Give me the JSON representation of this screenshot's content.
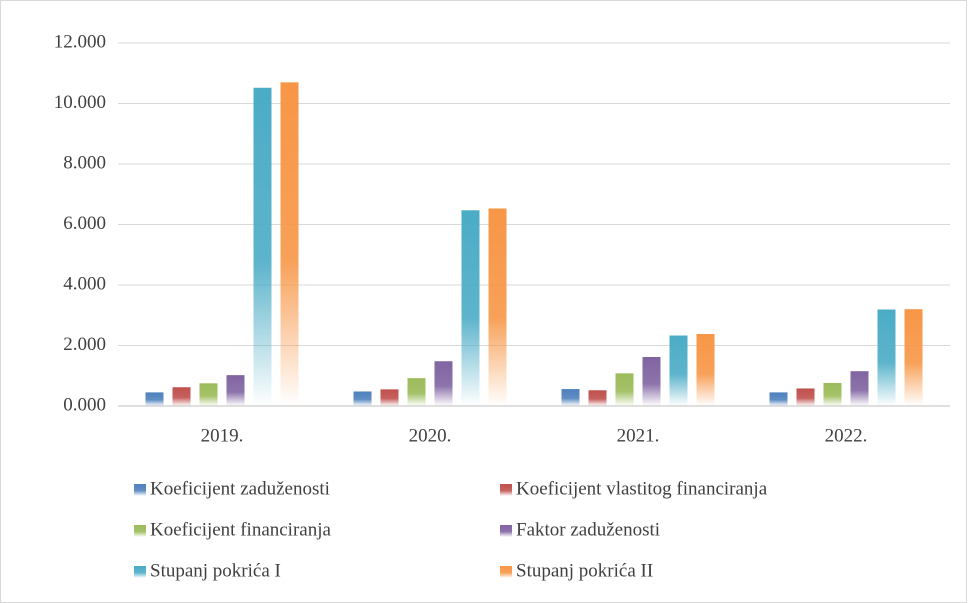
{
  "chart_data": {
    "type": "bar",
    "categories": [
      "2019.",
      "2020.",
      "2021.",
      "2022."
    ],
    "series": [
      {
        "name": "Koeficijent zaduženosti",
        "color": "#4f81bd",
        "values": [
          0.45,
          0.48,
          0.56,
          0.45
        ]
      },
      {
        "name": "Koeficijent vlastitog financiranja",
        "color": "#c0504d",
        "values": [
          0.62,
          0.55,
          0.52,
          0.58
        ]
      },
      {
        "name": "Koeficijent financiranja",
        "color": "#9bbb59",
        "values": [
          0.75,
          0.92,
          1.08,
          0.76
        ]
      },
      {
        "name": "Faktor zaduženosti",
        "color": "#8064a2",
        "values": [
          1.02,
          1.48,
          1.62,
          1.15
        ]
      },
      {
        "name": "Stupanj pokrića I",
        "color": "#4bacc6",
        "values": [
          10.52,
          6.47,
          2.33,
          3.19
        ]
      },
      {
        "name": "Stupanj pokrića II",
        "color": "#f79646",
        "values": [
          10.7,
          6.53,
          2.38,
          3.2
        ]
      }
    ],
    "ylim": [
      0,
      12
    ],
    "yticks": [
      {
        "value": 0,
        "label": "0.000"
      },
      {
        "value": 2,
        "label": "2.000"
      },
      {
        "value": 4,
        "label": "4.000"
      },
      {
        "value": 6,
        "label": "6.000"
      },
      {
        "value": 8,
        "label": "8.000"
      },
      {
        "value": 10,
        "label": "10.000"
      },
      {
        "value": 12,
        "label": "12.000"
      }
    ],
    "grid": true,
    "legend": "bottom"
  }
}
